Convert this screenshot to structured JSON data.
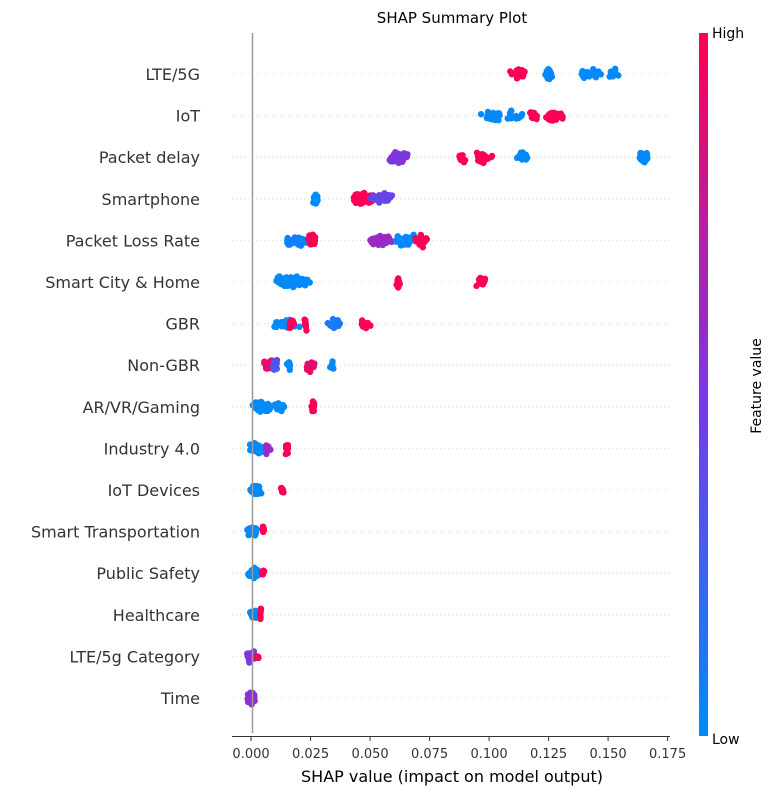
{
  "chart_data": {
    "type": "scatter",
    "subtype": "shap-beeswarm",
    "title": "SHAP Summary Plot",
    "xlabel": "SHAP value (impact on model output)",
    "ylabel": "",
    "xlim": [
      -0.008,
      0.176
    ],
    "xticks": [
      "0.000",
      "0.025",
      "0.050",
      "0.075",
      "0.100",
      "0.125",
      "0.150",
      "0.175"
    ],
    "xtick_values": [
      0,
      0.025,
      0.05,
      0.075,
      0.1,
      0.125,
      0.15,
      0.175
    ],
    "grid": false,
    "colorbar": {
      "label": "Feature value",
      "high_label": "High",
      "low_label": "Low",
      "high_color": "#ff0051",
      "mid_color": "#7f35e2",
      "low_color": "#008bfb"
    },
    "features": [
      {
        "name": "LTE/5G",
        "clusters": [
          {
            "x": 0.112,
            "spread": 0.003,
            "n": 40,
            "v": 1.0
          },
          {
            "x": 0.125,
            "spread": 0.0015,
            "n": 30,
            "v": 0.0
          },
          {
            "x": 0.14,
            "spread": 0.002,
            "n": 14,
            "v": 0.0
          },
          {
            "x": 0.145,
            "spread": 0.002,
            "n": 14,
            "v": 0.0
          },
          {
            "x": 0.152,
            "spread": 0.002,
            "n": 20,
            "v": 0.0
          }
        ]
      },
      {
        "name": "IoT",
        "clusters": [
          {
            "x": 0.102,
            "spread": 0.004,
            "n": 35,
            "v": 0.0
          },
          {
            "x": 0.11,
            "spread": 0.006,
            "n": 16,
            "v": 0.0
          },
          {
            "x": 0.119,
            "spread": 0.002,
            "n": 16,
            "v": 1.0
          },
          {
            "x": 0.128,
            "spread": 0.004,
            "n": 30,
            "v": 1.0
          }
        ]
      },
      {
        "name": "Packet delay",
        "clusters": [
          {
            "x": 0.062,
            "spread": 0.004,
            "n": 50,
            "v": 0.5
          },
          {
            "x": 0.088,
            "spread": 0.002,
            "n": 12,
            "v": 1.0
          },
          {
            "x": 0.097,
            "spread": 0.004,
            "n": 30,
            "v": 1.0
          },
          {
            "x": 0.114,
            "spread": 0.003,
            "n": 18,
            "v": 0.0
          },
          {
            "x": 0.165,
            "spread": 0.002,
            "n": 40,
            "v": 0.0
          }
        ]
      },
      {
        "name": "Smartphone",
        "clusters": [
          {
            "x": 0.027,
            "spread": 0.001,
            "n": 20,
            "v": 0.0
          },
          {
            "x": 0.047,
            "spread": 0.004,
            "n": 70,
            "v": 1.0
          },
          {
            "x": 0.055,
            "spread": 0.005,
            "n": 40,
            "v": 0.4
          }
        ]
      },
      {
        "name": "Packet Loss Rate",
        "clusters": [
          {
            "x": 0.019,
            "spread": 0.004,
            "n": 55,
            "v": 0.05
          },
          {
            "x": 0.026,
            "spread": 0.002,
            "n": 20,
            "v": 1.0
          },
          {
            "x": 0.055,
            "spread": 0.005,
            "n": 40,
            "v": 0.6
          },
          {
            "x": 0.065,
            "spread": 0.004,
            "n": 35,
            "v": 0.0
          },
          {
            "x": 0.072,
            "spread": 0.003,
            "n": 22,
            "v": 1.0
          }
        ]
      },
      {
        "name": "Smart City & Home",
        "clusters": [
          {
            "x": 0.017,
            "spread": 0.006,
            "n": 110,
            "v": 0.0
          },
          {
            "x": 0.062,
            "spread": 0.001,
            "n": 14,
            "v": 1.0
          },
          {
            "x": 0.097,
            "spread": 0.002,
            "n": 20,
            "v": 1.0
          }
        ]
      },
      {
        "name": "GBR",
        "clusters": [
          {
            "x": 0.014,
            "spread": 0.005,
            "n": 40,
            "v": 0.0
          },
          {
            "x": 0.017,
            "spread": 0.001,
            "n": 20,
            "v": 1.0
          },
          {
            "x": 0.023,
            "spread": 0.001,
            "n": 8,
            "v": 1.0
          },
          {
            "x": 0.035,
            "spread": 0.003,
            "n": 24,
            "v": 0.1
          },
          {
            "x": 0.048,
            "spread": 0.002,
            "n": 18,
            "v": 1.0
          }
        ]
      },
      {
        "name": "Non-GBR",
        "clusters": [
          {
            "x": 0.008,
            "spread": 0.003,
            "n": 30,
            "v": 0.9
          },
          {
            "x": 0.01,
            "spread": 0.001,
            "n": 20,
            "v": 0.3
          },
          {
            "x": 0.016,
            "spread": 0.001,
            "n": 8,
            "v": 0.0
          },
          {
            "x": 0.025,
            "spread": 0.002,
            "n": 18,
            "v": 0.9
          },
          {
            "x": 0.034,
            "spread": 0.001,
            "n": 10,
            "v": 0.0
          }
        ]
      },
      {
        "name": "AR/VR/Gaming",
        "clusters": [
          {
            "x": 0.005,
            "spread": 0.004,
            "n": 60,
            "v": 0.0
          },
          {
            "x": 0.012,
            "spread": 0.002,
            "n": 14,
            "v": 0.0
          },
          {
            "x": 0.026,
            "spread": 0.001,
            "n": 12,
            "v": 1.0
          }
        ]
      },
      {
        "name": "Industry 4.0",
        "clusters": [
          {
            "x": 0.003,
            "spread": 0.003,
            "n": 55,
            "v": 0.0
          },
          {
            "x": 0.007,
            "spread": 0.001,
            "n": 10,
            "v": 0.6
          },
          {
            "x": 0.015,
            "spread": 0.001,
            "n": 12,
            "v": 1.0
          }
        ]
      },
      {
        "name": "IoT Devices",
        "clusters": [
          {
            "x": 0.002,
            "spread": 0.002,
            "n": 55,
            "v": 0.0
          },
          {
            "x": 0.013,
            "spread": 0.001,
            "n": 10,
            "v": 1.0
          }
        ]
      },
      {
        "name": "Smart Transportation",
        "clusters": [
          {
            "x": 0.001,
            "spread": 0.002,
            "n": 40,
            "v": 0.0
          },
          {
            "x": 0.005,
            "spread": 0.0008,
            "n": 8,
            "v": 1.0
          }
        ]
      },
      {
        "name": "Public Safety",
        "clusters": [
          {
            "x": 0.001,
            "spread": 0.002,
            "n": 40,
            "v": 0.0
          },
          {
            "x": 0.005,
            "spread": 0.0008,
            "n": 8,
            "v": 1.0
          }
        ]
      },
      {
        "name": "Healthcare",
        "clusters": [
          {
            "x": 0.001,
            "spread": 0.0015,
            "n": 30,
            "v": 0.0
          },
          {
            "x": 0.004,
            "spread": 0.0005,
            "n": 6,
            "v": 1.0
          }
        ]
      },
      {
        "name": "LTE/5g Category",
        "clusters": [
          {
            "x": 0.0,
            "spread": 0.0015,
            "n": 35,
            "v": 0.5
          },
          {
            "x": 0.003,
            "spread": 0.0005,
            "n": 4,
            "v": 1.0
          }
        ]
      },
      {
        "name": "Time",
        "clusters": [
          {
            "x": 0.0,
            "spread": 0.0015,
            "n": 40,
            "v": 0.55
          }
        ]
      }
    ]
  }
}
